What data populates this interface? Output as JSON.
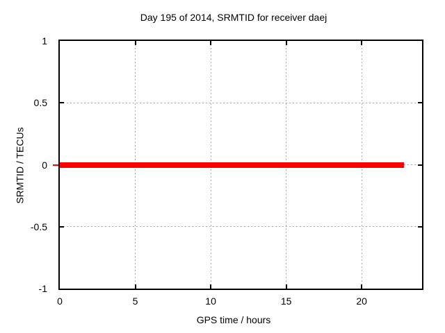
{
  "chart_data": {
    "type": "line",
    "title": "Day 195 of 2014, SRMTID for receiver daej",
    "xlabel": "GPS time / hours",
    "ylabel": "SRMTID / TECUs",
    "xlim": [
      0,
      24
    ],
    "ylim": [
      -1,
      1
    ],
    "xticks": [
      0,
      5,
      10,
      15,
      20
    ],
    "xtick_labels": [
      "0",
      "5",
      "10",
      "15",
      "20"
    ],
    "yticks": [
      -1,
      -0.5,
      0,
      0.5,
      1
    ],
    "ytick_labels": [
      "-1",
      "-0.5",
      "0",
      "0.5",
      "1"
    ],
    "grid": true,
    "legend": false,
    "series": [
      {
        "name": "SRMTID",
        "x": [
          0,
          22.8
        ],
        "y": [
          0,
          0
        ],
        "line_width": 8
      }
    ]
  },
  "colors": {
    "background": "#ffffff",
    "border": "#000000",
    "grid": "#a8a8a8",
    "text": "#000000",
    "series": "#ff0000"
  }
}
